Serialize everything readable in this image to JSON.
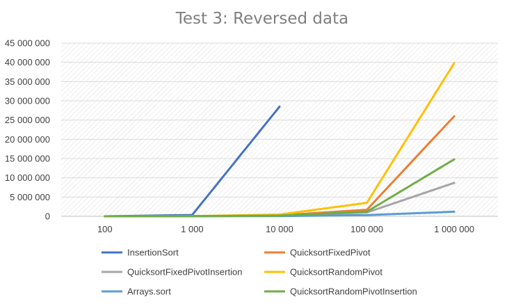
{
  "chart_data": {
    "type": "line",
    "title": "Test 3: Reversed data",
    "xlabel": "",
    "ylabel": "",
    "categories": [
      "100",
      "1 000",
      "10 000",
      "100 000",
      "1 000 000"
    ],
    "ylim": [
      0,
      45000000
    ],
    "y_ticks": [
      0,
      5000000,
      10000000,
      15000000,
      20000000,
      25000000,
      30000000,
      35000000,
      40000000,
      45000000
    ],
    "y_tick_labels": [
      "0",
      "5 000 000",
      "10 000 000",
      "15 000 000",
      "20 000 000",
      "25 000 000",
      "30 000 000",
      "35 000 000",
      "40 000 000",
      "45 000 000"
    ],
    "grid": "horizontal",
    "plot_background": "diagonal hatch",
    "legend_position": "bottom",
    "series": [
      {
        "name": "InsertionSort",
        "color": "#4472c4",
        "values": [
          5000,
          350000,
          28500000,
          null,
          null
        ]
      },
      {
        "name": "QuicksortFixedPivot",
        "color": "#ed7d31",
        "values": [
          2000,
          30000,
          250000,
          1700000,
          26000000
        ]
      },
      {
        "name": "QuicksortFixedPivotInsertion",
        "color": "#a5a5a5",
        "values": [
          1500,
          25000,
          150000,
          1000000,
          8700000
        ]
      },
      {
        "name": "QuicksortRandomPivot",
        "color": "#ffc000",
        "values": [
          3000,
          50000,
          450000,
          3500000,
          39800000
        ]
      },
      {
        "name": "Arrays.sort",
        "color": "#5b9bd5",
        "values": [
          1000,
          10000,
          60000,
          300000,
          1200000
        ]
      },
      {
        "name": "QuicksortRandomPivotInsertion",
        "color": "#70ad47",
        "values": [
          2000,
          30000,
          180000,
          1200000,
          14800000
        ]
      }
    ]
  }
}
